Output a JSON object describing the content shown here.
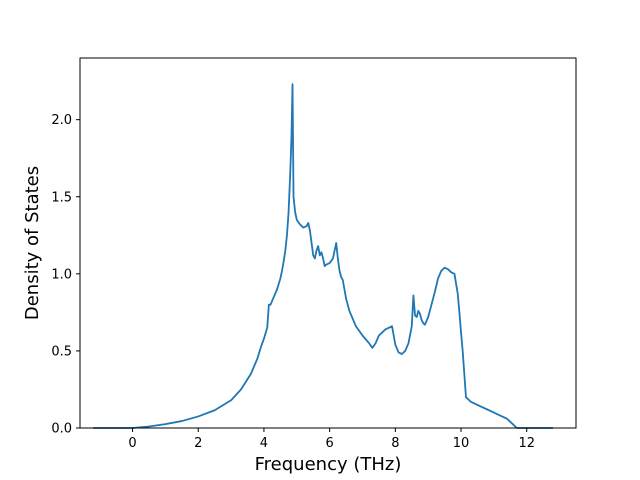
{
  "chart_data": {
    "type": "line",
    "title": "",
    "xlabel": "Frequency (THz)",
    "ylabel": "Density of States",
    "xlim": [
      -1.6,
      13.5
    ],
    "ylim": [
      0.0,
      2.4
    ],
    "xticks": [
      0,
      2,
      4,
      6,
      8,
      10,
      12
    ],
    "xtick_labels": [
      "0",
      "2",
      "4",
      "6",
      "8",
      "10",
      "12"
    ],
    "yticks": [
      0.0,
      0.5,
      1.0,
      1.5,
      2.0
    ],
    "ytick_labels": [
      "0.0",
      "0.5",
      "1.0",
      "1.5",
      "2.0"
    ],
    "grid": false,
    "colors": {
      "line": "#1f77b4"
    },
    "series": [
      {
        "x": [
          -1.2,
          -0.5,
          0.0,
          0.5,
          1.0,
          1.5,
          2.0,
          2.5,
          3.0,
          3.3,
          3.6,
          3.8,
          3.9,
          4.0,
          4.1,
          4.15,
          4.2,
          4.3,
          4.4,
          4.5,
          4.55,
          4.6,
          4.65,
          4.7,
          4.75,
          4.8,
          4.84,
          4.87,
          4.9,
          4.95,
          5.0,
          5.1,
          5.2,
          5.3,
          5.35,
          5.4,
          5.45,
          5.5,
          5.55,
          5.6,
          5.65,
          5.7,
          5.75,
          5.8,
          5.85,
          5.9,
          6.0,
          6.1,
          6.2,
          6.25,
          6.3,
          6.35,
          6.4,
          6.45,
          6.5,
          6.6,
          6.8,
          7.0,
          7.2,
          7.3,
          7.4,
          7.5,
          7.6,
          7.7,
          7.8,
          7.9,
          8.0,
          8.1,
          8.2,
          8.3,
          8.4,
          8.5,
          8.55,
          8.6,
          8.65,
          8.7,
          8.75,
          8.8,
          8.85,
          8.9,
          9.0,
          9.1,
          9.2,
          9.3,
          9.4,
          9.5,
          9.6,
          9.7,
          9.8,
          9.9,
          9.95,
          10.0,
          10.05,
          10.1,
          10.15,
          10.2,
          10.25,
          10.3,
          10.5,
          10.8,
          11.0,
          11.2,
          11.4,
          11.5,
          11.6,
          11.7,
          12.0,
          12.8
        ],
        "y": [
          0.0,
          0.0,
          0.0,
          0.01,
          0.025,
          0.045,
          0.075,
          0.115,
          0.18,
          0.25,
          0.35,
          0.45,
          0.52,
          0.58,
          0.65,
          0.8,
          0.8,
          0.85,
          0.9,
          0.97,
          1.02,
          1.08,
          1.15,
          1.25,
          1.4,
          1.65,
          1.9,
          2.23,
          1.5,
          1.4,
          1.35,
          1.32,
          1.3,
          1.31,
          1.33,
          1.28,
          1.2,
          1.12,
          1.1,
          1.15,
          1.18,
          1.12,
          1.14,
          1.1,
          1.05,
          1.06,
          1.07,
          1.1,
          1.2,
          1.1,
          1.02,
          0.98,
          0.96,
          0.9,
          0.84,
          0.76,
          0.66,
          0.6,
          0.55,
          0.52,
          0.55,
          0.6,
          0.62,
          0.64,
          0.65,
          0.66,
          0.54,
          0.49,
          0.48,
          0.5,
          0.55,
          0.66,
          0.86,
          0.73,
          0.72,
          0.76,
          0.74,
          0.7,
          0.68,
          0.67,
          0.72,
          0.8,
          0.88,
          0.97,
          1.02,
          1.04,
          1.03,
          1.01,
          1.0,
          0.87,
          0.75,
          0.62,
          0.5,
          0.35,
          0.2,
          0.19,
          0.18,
          0.17,
          0.15,
          0.12,
          0.1,
          0.08,
          0.06,
          0.04,
          0.02,
          0.0,
          0.0,
          0.0
        ]
      }
    ]
  }
}
